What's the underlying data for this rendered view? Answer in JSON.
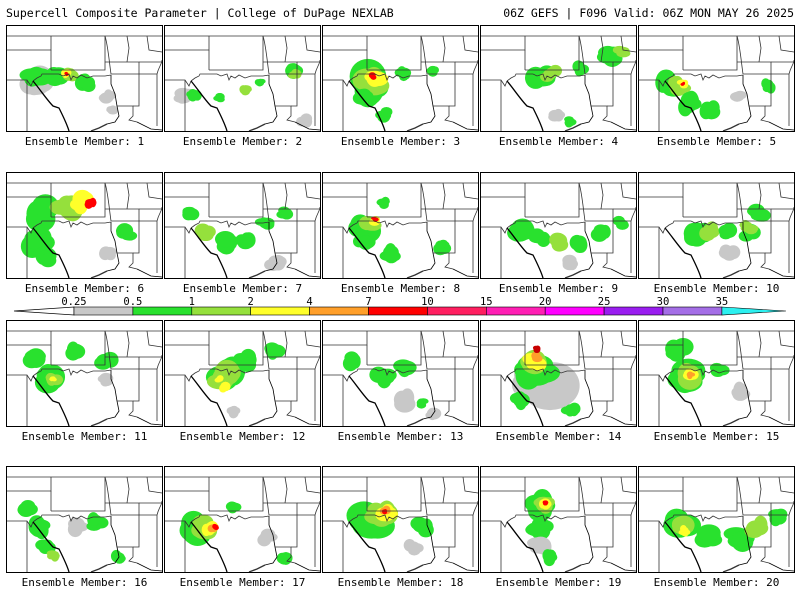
{
  "header": {
    "title_left": "Supercell Composite Parameter | College of DuPage NEXLAB",
    "title_right": "06Z GEFS | F096 Valid: 06Z MON MAY 26 2025"
  },
  "colorbar": {
    "labels": [
      "0.25",
      "0.5",
      "1",
      "2",
      "4",
      "7",
      "10",
      "15",
      "20",
      "25",
      "30",
      "35"
    ],
    "colors": [
      "#c8c8c8",
      "#29e12e",
      "#95e03c",
      "#ffff2a",
      "#ff9f2a",
      "#ff0000",
      "#ff1f60",
      "#ff1fb4",
      "#ff00ff",
      "#9a1ef0",
      "#a46ee6",
      "#2cf0f0"
    ]
  },
  "map_colors": {
    "gray": "#c8c8c8",
    "green": "#29e12e",
    "lightgreen": "#95e03c",
    "yellow": "#ffff2a",
    "orange": "#ff9f2a",
    "red": "#ff0000",
    "maroon": "#c80000"
  },
  "panels": [
    {
      "label": "Ensemble Member: 1"
    },
    {
      "label": "Ensemble Member: 2"
    },
    {
      "label": "Ensemble Member: 3"
    },
    {
      "label": "Ensemble Member: 4"
    },
    {
      "label": "Ensemble Member: 5"
    },
    {
      "label": "Ensemble Member: 6"
    },
    {
      "label": "Ensemble Member: 7"
    },
    {
      "label": "Ensemble Member: 8"
    },
    {
      "label": "Ensemble Member: 9"
    },
    {
      "label": "Ensemble Member: 10"
    },
    {
      "label": "Ensemble Member: 11"
    },
    {
      "label": "Ensemble Member: 12"
    },
    {
      "label": "Ensemble Member: 13"
    },
    {
      "label": "Ensemble Member: 14"
    },
    {
      "label": "Ensemble Member: 15"
    },
    {
      "label": "Ensemble Member: 16"
    },
    {
      "label": "Ensemble Member: 17"
    },
    {
      "label": "Ensemble Member: 18"
    },
    {
      "label": "Ensemble Member: 19"
    },
    {
      "label": "Ensemble Member: 20"
    }
  ]
}
